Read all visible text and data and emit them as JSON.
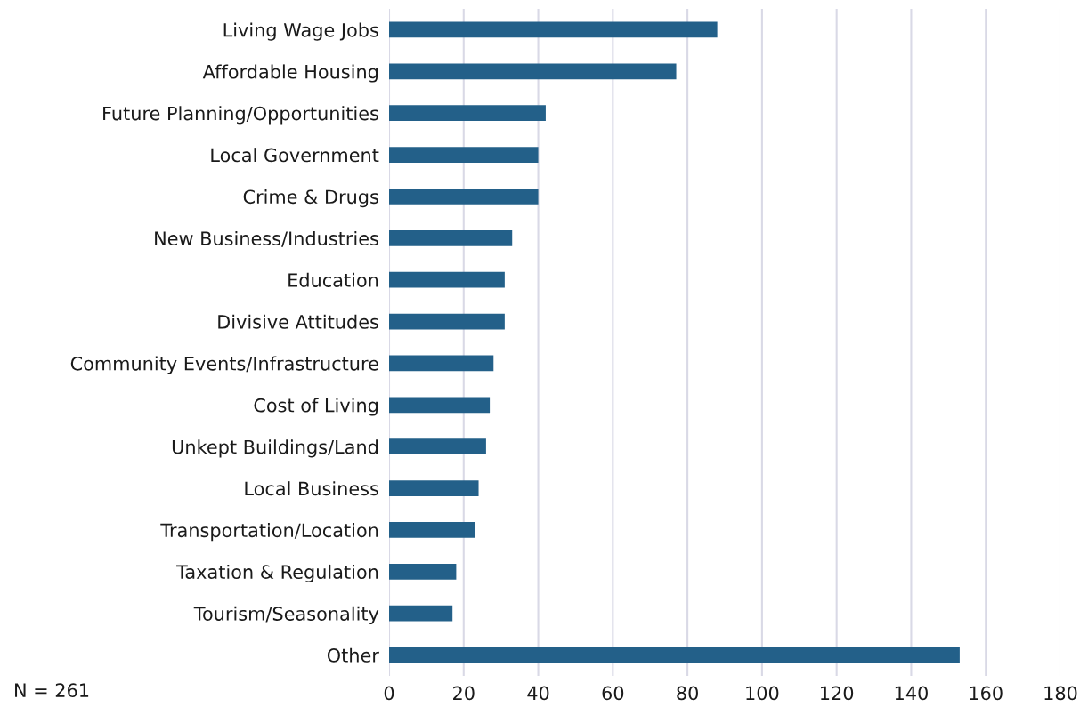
{
  "chart_data": {
    "type": "bar",
    "orientation": "horizontal",
    "categories": [
      "Living Wage Jobs",
      "Affordable Housing",
      "Future Planning/Opportunities",
      "Local Government",
      "Crime & Drugs",
      "New Business/Industries",
      "Education",
      "Divisive Attitudes",
      "Community Events/Infrastructure",
      "Cost of Living",
      "Unkept Buildings/Land",
      "Local Business",
      "Transportation/Location",
      "Taxation & Regulation",
      "Tourism/Seasonality",
      "Other"
    ],
    "values": [
      88,
      77,
      42,
      40,
      40,
      33,
      31,
      31,
      28,
      27,
      26,
      24,
      23,
      18,
      17,
      153
    ],
    "color": "#236089",
    "xlim": [
      0,
      180
    ],
    "xticks": [
      0,
      20,
      40,
      60,
      80,
      100,
      120,
      140,
      160,
      180
    ],
    "grid": "x",
    "legend": false,
    "annotations": [
      "N = 261"
    ]
  }
}
